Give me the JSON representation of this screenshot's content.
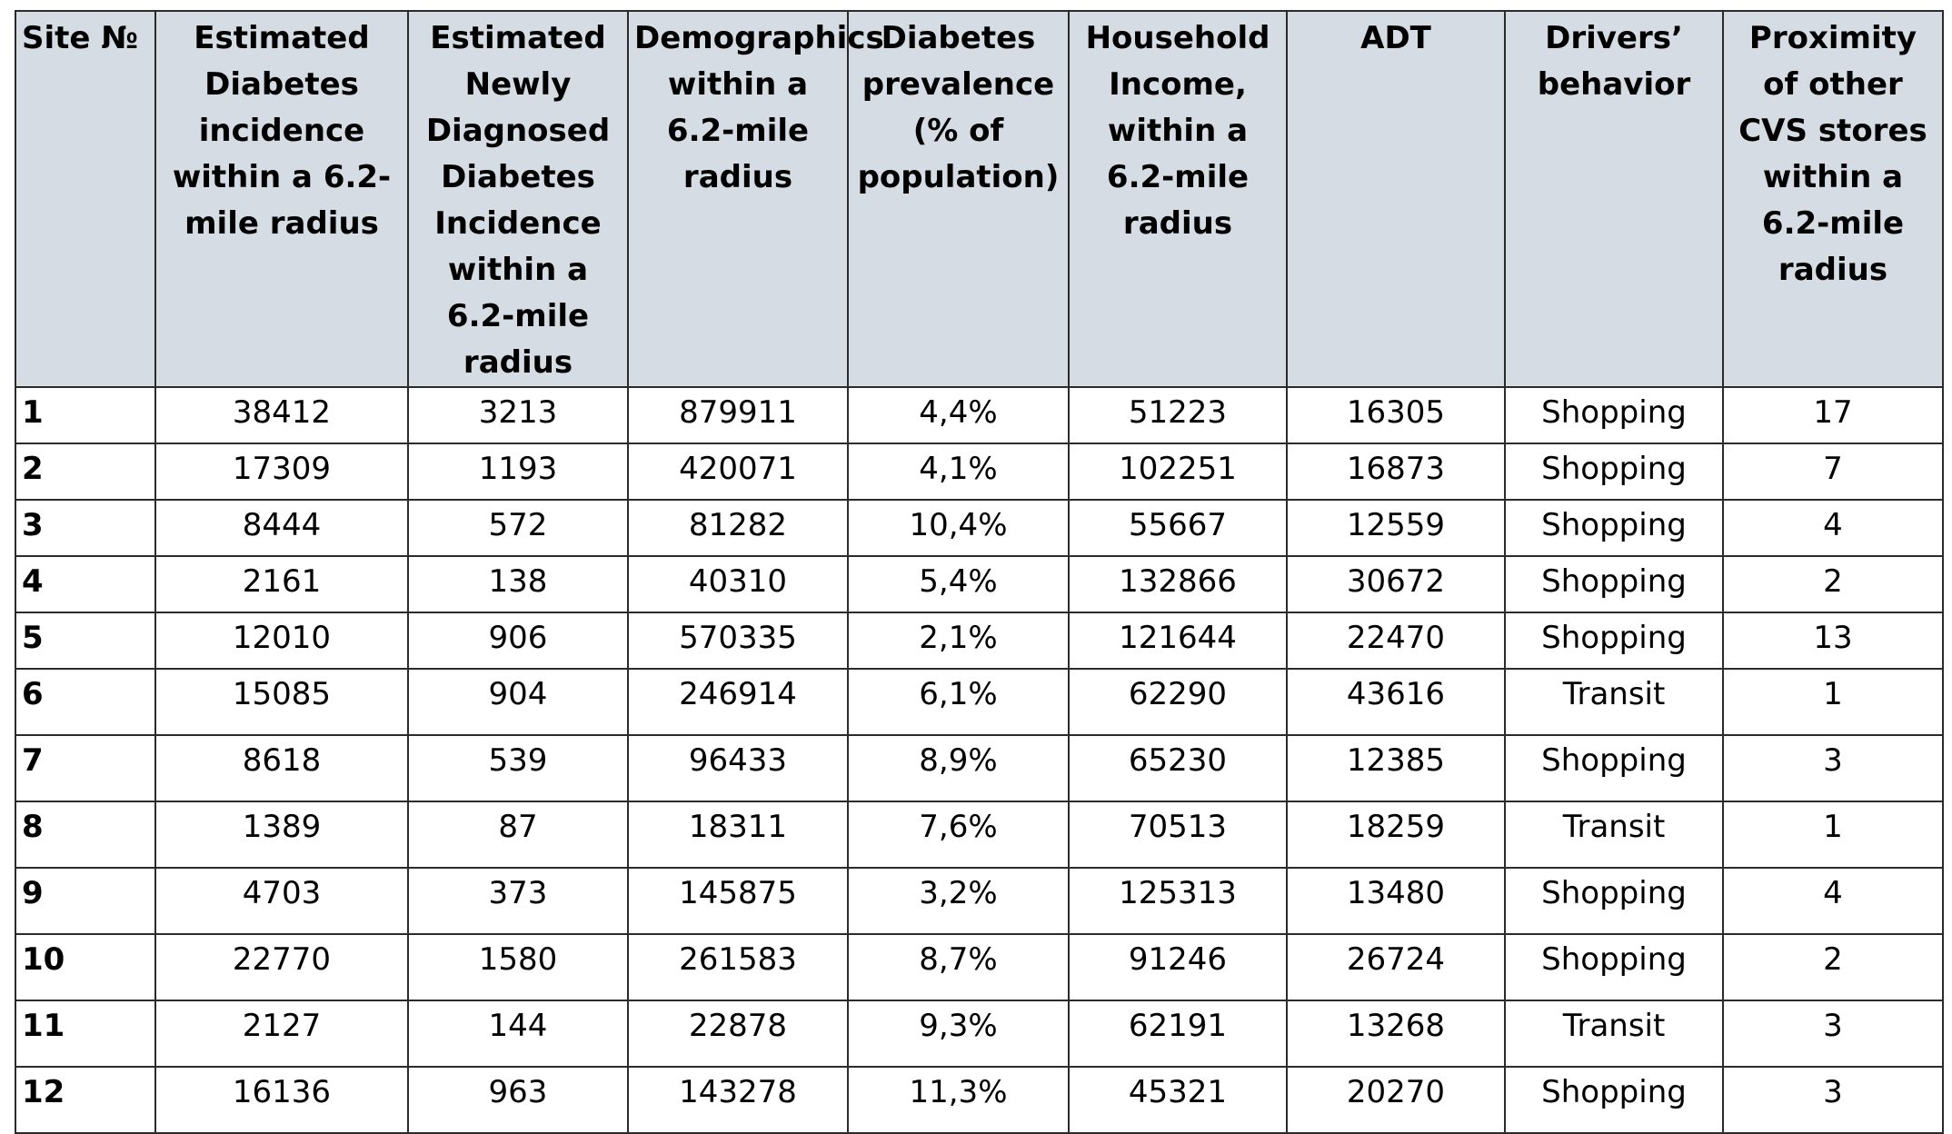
{
  "table": {
    "headers": [
      "Site №",
      "Estimated Diabetes incidence within a 6.2-mile radius",
      "Estimated Newly Diagnosed Diabetes Incidence within a 6.2-mile radius",
      "Demographics within a 6.2-mile radius",
      "Diabetes prevalence (% of population)",
      "Household Income, within a 6.2-mile radius",
      "ADT",
      "Drivers’ behavior",
      "Proximity of other CVS stores within a 6.2-mile radius"
    ],
    "rows": [
      [
        "1",
        "38412",
        "3213",
        "879911",
        "4,4%",
        "51223",
        "16305",
        "Shopping",
        "17"
      ],
      [
        "2",
        "17309",
        "1193",
        "420071",
        "4,1%",
        "102251",
        "16873",
        "Shopping",
        "7"
      ],
      [
        "3",
        "8444",
        "572",
        "81282",
        "10,4%",
        "55667",
        "12559",
        "Shopping",
        "4"
      ],
      [
        "4",
        "2161",
        "138",
        "40310",
        "5,4%",
        "132866",
        "30672",
        "Shopping",
        "2"
      ],
      [
        "5",
        "12010",
        "906",
        "570335",
        "2,1%",
        "121644",
        "22470",
        "Shopping",
        "13"
      ],
      [
        "6",
        "15085",
        "904",
        "246914",
        "6,1%",
        "62290",
        "43616",
        "Transit",
        "1"
      ],
      [
        "7",
        "8618",
        "539",
        "96433",
        "8,9%",
        "65230",
        "12385",
        "Shopping",
        "3"
      ],
      [
        "8",
        "1389",
        "87",
        "18311",
        "7,6%",
        "70513",
        "18259",
        "Transit",
        "1"
      ],
      [
        "9",
        "4703",
        "373",
        "145875",
        "3,2%",
        "125313",
        "13480",
        "Shopping",
        "4"
      ],
      [
        "10",
        "22770",
        "1580",
        "261583",
        "8,7%",
        "91246",
        "26724",
        "Shopping",
        "2"
      ],
      [
        "11",
        "2127",
        "144",
        "22878",
        "9,3%",
        "62191",
        "13268",
        "Transit",
        "3"
      ],
      [
        "12",
        "16136",
        "963",
        "143278",
        "11,3%",
        "45321",
        "20270",
        "Shopping",
        "3"
      ]
    ]
  }
}
